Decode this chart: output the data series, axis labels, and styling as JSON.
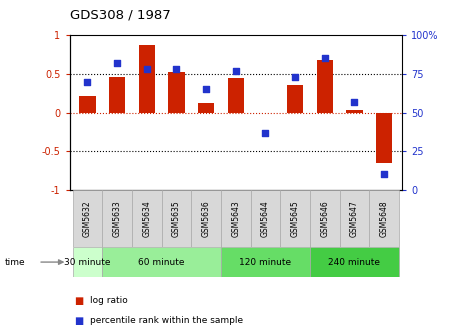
{
  "title": "GDS308 / 1987",
  "samples": [
    "GSM5632",
    "GSM5633",
    "GSM5634",
    "GSM5635",
    "GSM5636",
    "GSM5643",
    "GSM5644",
    "GSM5645",
    "GSM5646",
    "GSM5647",
    "GSM5648"
  ],
  "log_ratio": [
    0.22,
    0.46,
    0.87,
    0.53,
    0.13,
    0.45,
    -0.01,
    0.36,
    0.68,
    0.03,
    -0.65
  ],
  "percentile_rank": [
    70,
    82,
    78,
    78,
    65,
    77,
    37,
    73,
    85,
    57,
    10
  ],
  "bar_color": "#cc2200",
  "dot_color": "#2233cc",
  "ylim_left": [
    -1,
    1
  ],
  "ylim_right": [
    0,
    100
  ],
  "yticks_left": [
    -1,
    -0.5,
    0,
    0.5,
    1
  ],
  "ytick_labels_left": [
    "-1",
    "-0.5",
    "0",
    "0.5",
    "1"
  ],
  "yticks_right": [
    0,
    25,
    50,
    75,
    100
  ],
  "ytick_labels_right": [
    "0",
    "25",
    "50",
    "75",
    "100%"
  ],
  "groups": [
    {
      "label": "30 minute",
      "cols": [
        0
      ],
      "color": "#ccffcc"
    },
    {
      "label": "60 minute",
      "cols": [
        1,
        2,
        3,
        4
      ],
      "color": "#99ee99"
    },
    {
      "label": "120 minute",
      "cols": [
        5,
        6,
        7
      ],
      "color": "#66dd66"
    },
    {
      "label": "240 minute",
      "cols": [
        8,
        9,
        10
      ],
      "color": "#44cc44"
    }
  ],
  "sample_box_color": "#d8d8d8",
  "bg_color": "#ffffff",
  "legend_bar_label": "log ratio",
  "legend_dot_label": "percentile rank within the sample"
}
